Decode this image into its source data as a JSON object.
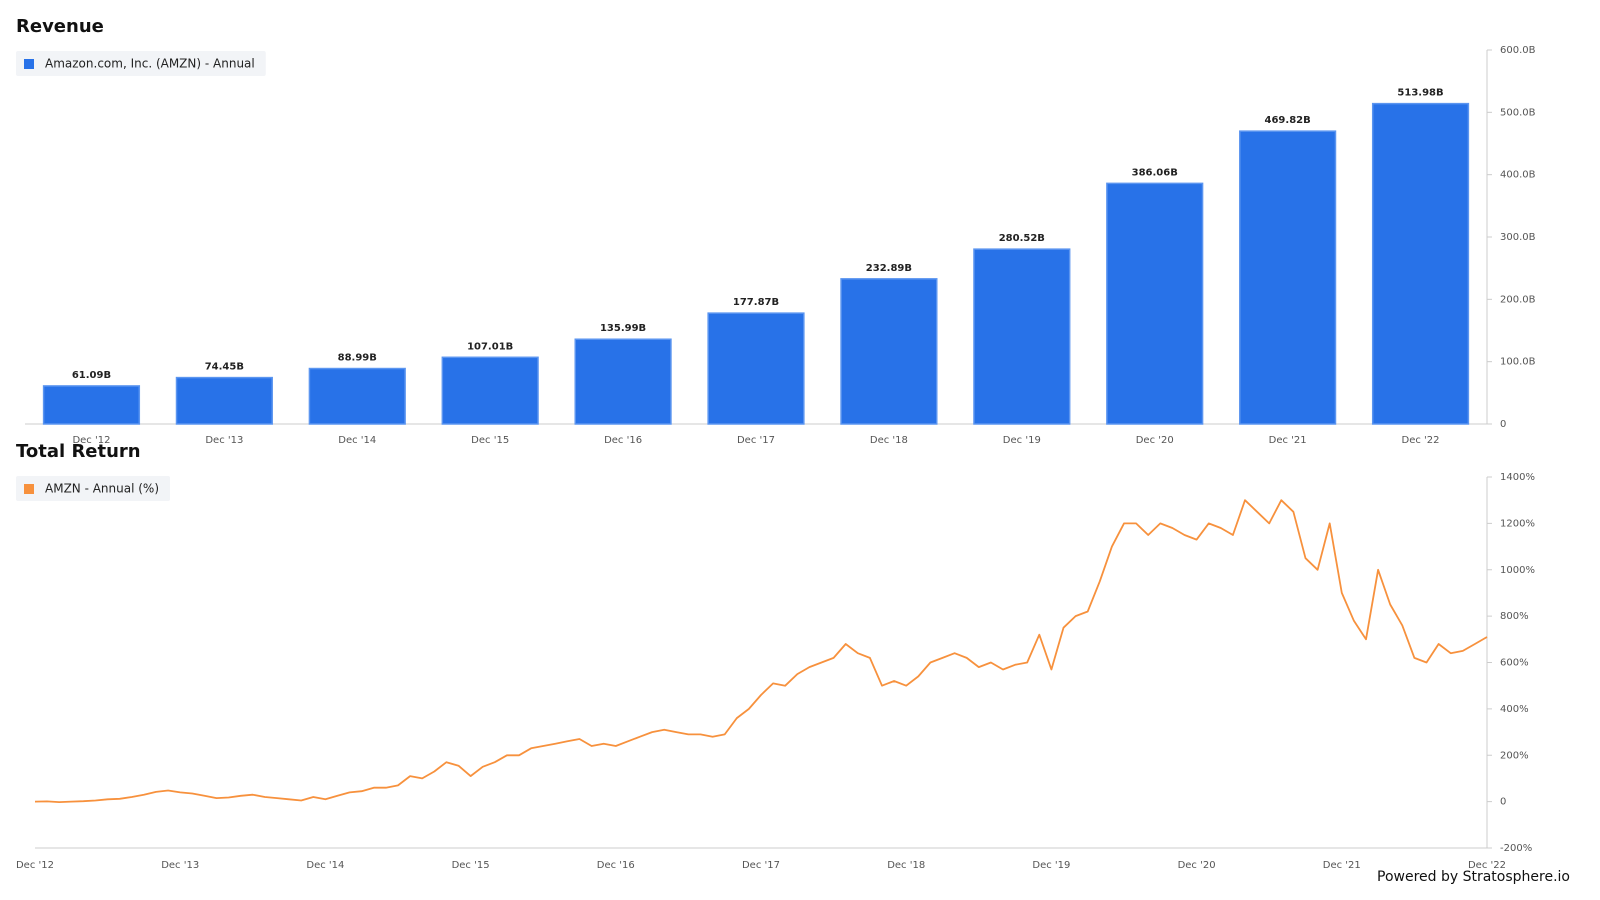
{
  "chart_data": [
    {
      "type": "bar",
      "title": "Revenue",
      "categories": [
        "Dec '12",
        "Dec '13",
        "Dec '14",
        "Dec '15",
        "Dec '16",
        "Dec '17",
        "Dec '18",
        "Dec '19",
        "Dec '20",
        "Dec '21",
        "Dec '22"
      ],
      "series": [
        {
          "name": "Amazon.com, Inc. (AMZN) - Annual",
          "color": "#2872e8",
          "values": [
            61.09,
            74.45,
            88.99,
            107.01,
            135.99,
            177.87,
            232.89,
            280.52,
            386.06,
            469.82,
            513.98
          ],
          "value_labels": [
            "61.09B",
            "74.45B",
            "88.99B",
            "107.01B",
            "135.99B",
            "177.87B",
            "232.89B",
            "280.52B",
            "386.06B",
            "469.82B",
            "513.98B"
          ]
        }
      ],
      "ylim": [
        0,
        600
      ],
      "yticks": [
        0,
        {
          "value": 100,
          "label": "100.0B"
        },
        {
          "value": 200,
          "label": "200.0B"
        },
        {
          "value": 300,
          "label": "300.0B"
        },
        {
          "value": 400,
          "label": "400.0B"
        },
        {
          "value": 500,
          "label": "500.0B"
        },
        {
          "value": 600,
          "label": "600.0B"
        }
      ],
      "grid": false
    },
    {
      "type": "line",
      "title": "Total Return",
      "categories": [
        "Dec '12",
        null,
        null,
        null,
        null,
        null,
        null,
        null,
        null,
        null,
        null,
        null,
        "Dec '13",
        null,
        null,
        null,
        null,
        null,
        null,
        null,
        null,
        null,
        null,
        null,
        "Dec '14",
        null,
        null,
        null,
        null,
        null,
        null,
        null,
        null,
        null,
        null,
        null,
        "Dec '15",
        null,
        null,
        null,
        null,
        null,
        null,
        null,
        null,
        null,
        null,
        null,
        "Dec '16",
        null,
        null,
        null,
        null,
        null,
        null,
        null,
        null,
        null,
        null,
        null,
        "Dec '17",
        null,
        null,
        null,
        null,
        null,
        null,
        null,
        null,
        null,
        null,
        null,
        "Dec '18",
        null,
        null,
        null,
        null,
        null,
        null,
        null,
        null,
        null,
        null,
        null,
        "Dec '19",
        null,
        null,
        null,
        null,
        null,
        null,
        null,
        null,
        null,
        null,
        null,
        "Dec '20",
        null,
        null,
        null,
        null,
        null,
        null,
        null,
        null,
        null,
        null,
        null,
        "Dec '21",
        null,
        null,
        null,
        null,
        null,
        null,
        null,
        null,
        null,
        null,
        null,
        "Dec '22"
      ],
      "series": [
        {
          "name": "AMZN - Annual (%)",
          "color": "#f7913d",
          "values": [
            0,
            1,
            -2,
            0,
            2,
            5,
            10,
            12,
            20,
            30,
            42,
            48,
            40,
            35,
            25,
            15,
            18,
            25,
            30,
            20,
            15,
            10,
            5,
            20,
            10,
            25,
            40,
            45,
            60,
            60,
            70,
            110,
            100,
            130,
            170,
            155,
            110,
            150,
            170,
            200,
            200,
            230,
            240,
            250,
            260,
            270,
            240,
            250,
            240,
            260,
            280,
            300,
            310,
            300,
            290,
            290,
            280,
            290,
            360,
            400,
            460,
            510,
            500,
            550,
            580,
            600,
            620,
            680,
            640,
            620,
            500,
            520,
            500,
            540,
            600,
            620,
            640,
            620,
            580,
            600,
            570,
            590,
            600,
            720,
            570,
            750,
            800,
            820,
            950,
            1100,
            1200,
            1200,
            1150,
            1200,
            1180,
            1150,
            1130,
            1200,
            1180,
            1150,
            1300,
            1250,
            1200,
            1300,
            1250,
            1050,
            1000,
            1200,
            900,
            780,
            700,
            1000,
            850,
            760,
            620,
            600,
            680,
            640,
            650,
            680,
            710
          ]
        }
      ],
      "ylim": [
        -200,
        1400
      ],
      "yticks": [
        {
          "value": -200,
          "label": "-200%"
        },
        0,
        {
          "value": 200,
          "label": "200%"
        },
        {
          "value": 400,
          "label": "400%"
        },
        {
          "value": 600,
          "label": "600%"
        },
        {
          "value": 800,
          "label": "800%"
        },
        {
          "value": 1000,
          "label": "1000%"
        },
        {
          "value": 1200,
          "label": "1200%"
        },
        {
          "value": 1400,
          "label": "1400%"
        }
      ],
      "grid": false
    }
  ],
  "footer": "Powered by Stratosphere.io"
}
